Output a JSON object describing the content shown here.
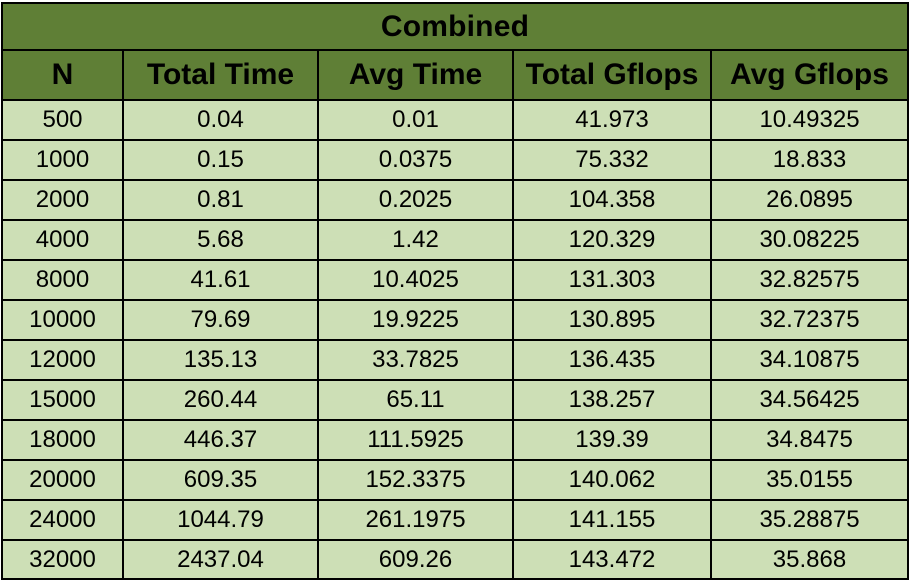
{
  "table": {
    "title": "Combined",
    "columns": [
      "N",
      "Total Time",
      "Avg Time",
      "Total Gflops",
      "Avg Gflops"
    ],
    "rows": [
      [
        "500",
        "0.04",
        "0.01",
        "41.973",
        "10.49325"
      ],
      [
        "1000",
        "0.15",
        "0.0375",
        "75.332",
        "18.833"
      ],
      [
        "2000",
        "0.81",
        "0.2025",
        "104.358",
        "26.0895"
      ],
      [
        "4000",
        "5.68",
        "1.42",
        "120.329",
        "30.08225"
      ],
      [
        "8000",
        "41.61",
        "10.4025",
        "131.303",
        "32.82575"
      ],
      [
        "10000",
        "79.69",
        "19.9225",
        "130.895",
        "32.72375"
      ],
      [
        "12000",
        "135.13",
        "33.7825",
        "136.435",
        "34.10875"
      ],
      [
        "15000",
        "260.44",
        "65.11",
        "138.257",
        "34.56425"
      ],
      [
        "18000",
        "446.37",
        "111.5925",
        "139.39",
        "34.8475"
      ],
      [
        "20000",
        "609.35",
        "152.3375",
        "140.062",
        "35.0155"
      ],
      [
        "24000",
        "1044.79",
        "261.1975",
        "141.155",
        "35.28875"
      ],
      [
        "32000",
        "2437.04",
        "609.26",
        "143.472",
        "35.868"
      ]
    ]
  },
  "colors": {
    "header_fill": "#5f7f36",
    "cell_fill": "#cddfb6",
    "border": "#000000"
  }
}
